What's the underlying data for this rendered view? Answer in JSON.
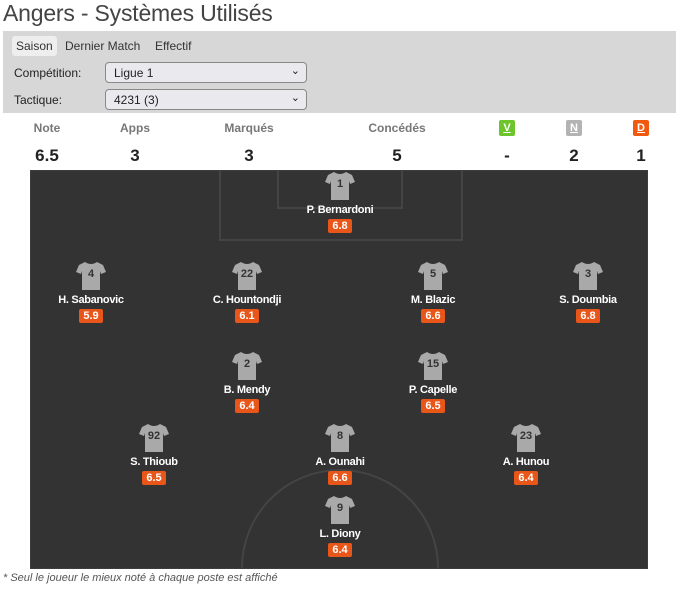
{
  "title": "Angers - Systèmes Utilisés",
  "tabs": [
    {
      "label": "Saison",
      "active": true
    },
    {
      "label": "Dernier Match"
    },
    {
      "label": "Effectif"
    }
  ],
  "filters": {
    "competition_label": "Compétition:",
    "competition_value": "Ligue 1",
    "tactic_label": "Tactique:",
    "tactic_value": "4231 (3)"
  },
  "stats": [
    {
      "label": "Note",
      "value": "6.5"
    },
    {
      "label": "Apps",
      "value": "3"
    },
    {
      "label": "Marqués",
      "value": "3"
    },
    {
      "label": "Concédés",
      "value": "5"
    }
  ],
  "results": [
    {
      "label": "V",
      "value": "-",
      "color": "#6cc62b"
    },
    {
      "label": "N",
      "value": "2",
      "color": "#b3b3b3"
    },
    {
      "label": "D",
      "value": "1",
      "color": "#f0590e"
    }
  ],
  "players": [
    {
      "number": "1",
      "name": "P. Bernardoni",
      "rating": "6.8"
    },
    {
      "number": "4",
      "name": "H. Sabanovic",
      "rating": "5.9"
    },
    {
      "number": "22",
      "name": "C. Hountondji",
      "rating": "6.1"
    },
    {
      "number": "5",
      "name": "M. Blazic",
      "rating": "6.6"
    },
    {
      "number": "3",
      "name": "S. Doumbia",
      "rating": "6.8"
    },
    {
      "number": "2",
      "name": "B. Mendy",
      "rating": "6.4"
    },
    {
      "number": "15",
      "name": "P. Capelle",
      "rating": "6.5"
    },
    {
      "number": "92",
      "name": "S. Thioub",
      "rating": "6.5"
    },
    {
      "number": "8",
      "name": "A. Ounahi",
      "rating": "6.6"
    },
    {
      "number": "23",
      "name": "A. Hunou",
      "rating": "6.4"
    },
    {
      "number": "9",
      "name": "L. Diony",
      "rating": "6.4"
    }
  ],
  "footnote": "* Seul le joueur le mieux noté à chaque poste est affiché"
}
